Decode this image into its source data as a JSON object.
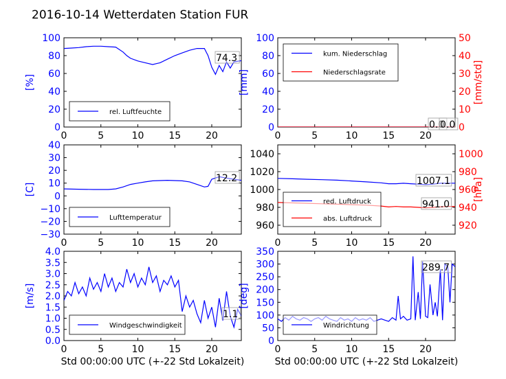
{
  "title": "2016-10-14 Wetterdaten Station FUR",
  "colors": {
    "blue": "#0000ff",
    "red": "#ff0000",
    "black": "#000000",
    "light_blue": "#7070ff"
  },
  "chart_data": [
    {
      "id": "humidity",
      "type": "line",
      "ylabel": "[%]",
      "xlabel": "",
      "xlim": [
        0,
        24
      ],
      "ylim": [
        0,
        100
      ],
      "xticks": [
        "0",
        "5",
        "10",
        "15",
        "20"
      ],
      "yticks": [
        "0",
        "20",
        "40",
        "60",
        "80",
        "100"
      ],
      "legend": [
        "rel. Luftfeuchte"
      ],
      "annotation": "74.3",
      "series": [
        {
          "name": "rel. Luftfeuchte",
          "color": "#0000ff",
          "x": [
            0,
            1,
            2,
            3,
            4,
            5,
            6,
            7,
            8,
            8.5,
            9,
            10,
            11,
            12,
            12.5,
            13,
            14,
            15,
            16,
            17,
            18,
            19,
            19.5,
            20,
            20.5,
            21,
            21.5,
            22,
            22.5,
            23,
            24
          ],
          "y": [
            88,
            88.5,
            89,
            90,
            90.5,
            90.5,
            90,
            89.5,
            84,
            80,
            77,
            74,
            72,
            70,
            71,
            72,
            76,
            80,
            83,
            86,
            88,
            88,
            80,
            67,
            59,
            69,
            62,
            73,
            66,
            73,
            74.3
          ]
        }
      ]
    },
    {
      "id": "precipitation",
      "type": "line",
      "ylabel": "[mm]",
      "y2label": "[mm/std]",
      "xlabel": "",
      "xlim": [
        0,
        24
      ],
      "ylim": [
        0,
        100
      ],
      "y2lim": [
        0,
        50
      ],
      "xticks": [
        "0",
        "5",
        "10",
        "15",
        "20"
      ],
      "yticks": [
        "0",
        "20",
        "40",
        "60",
        "80",
        "100"
      ],
      "y2ticks": [
        "0",
        "10",
        "20",
        "30",
        "40",
        "50"
      ],
      "legend": [
        "kum. Niederschlag",
        "Niederschlagsrate"
      ],
      "annotations": [
        "0.0",
        "0.0"
      ],
      "series": [
        {
          "name": "kum. Niederschlag",
          "color": "#0000ff",
          "x": [
            0,
            24
          ],
          "y": [
            0,
            0
          ]
        },
        {
          "name": "Niederschlagsrate",
          "color": "#ff0000",
          "x": [
            0,
            24
          ],
          "y": [
            0,
            0
          ]
        }
      ]
    },
    {
      "id": "temperature",
      "type": "line",
      "ylabel": "[C]",
      "xlabel": "",
      "xlim": [
        0,
        24
      ],
      "ylim": [
        -30,
        40
      ],
      "xticks": [
        "0",
        "5",
        "10",
        "15",
        "20"
      ],
      "yticks": [
        "−30",
        "−20",
        "−10",
        "0",
        "10",
        "20",
        "30",
        "40"
      ],
      "legend": [
        "Lufttemperatur"
      ],
      "annotation": "12.2",
      "series": [
        {
          "name": "Lufttemperatur",
          "color": "#0000ff",
          "x": [
            0,
            2,
            4,
            6,
            7,
            8,
            9,
            10,
            11,
            12,
            13,
            14,
            15,
            16,
            17,
            18,
            19,
            19.5,
            20,
            21,
            22,
            23,
            24
          ],
          "y": [
            5.5,
            5.2,
            5,
            5,
            5.5,
            7,
            9,
            10,
            11,
            11.8,
            12,
            12.2,
            12,
            11.8,
            11,
            9,
            7,
            7.5,
            13,
            15,
            14,
            13,
            12.2
          ]
        }
      ]
    },
    {
      "id": "pressure",
      "type": "line",
      "ylabel": "",
      "y2label": "[hPa]",
      "xlabel": "",
      "xlim": [
        0,
        24
      ],
      "ylim": [
        950,
        1050
      ],
      "y2lim": [
        910,
        1010
      ],
      "xticks": [
        "0",
        "5",
        "10",
        "15",
        "20"
      ],
      "yticks": [
        "960",
        "980",
        "1000",
        "1020",
        "1040"
      ],
      "y2ticks": [
        "920",
        "940",
        "960",
        "980",
        "1000"
      ],
      "legend": [
        "red. Luftdruck",
        "abs. Luftdruck"
      ],
      "annotations": [
        "1007.1",
        "941.0"
      ],
      "series": [
        {
          "name": "red. Luftdruck",
          "color": "#0000ff",
          "x": [
            0,
            2,
            4,
            6,
            8,
            10,
            12,
            14,
            15,
            16,
            17,
            18,
            19,
            20,
            21,
            22,
            23,
            24
          ],
          "y": [
            1012.5,
            1012,
            1011.5,
            1011,
            1010.5,
            1009.5,
            1008.5,
            1007.5,
            1006.5,
            1006.5,
            1007,
            1006.5,
            1006,
            1005.5,
            1006,
            1007,
            1007,
            1007.1
          ]
        },
        {
          "name": "abs. Luftdruck",
          "color": "#ff0000",
          "x": [
            0,
            2,
            4,
            6,
            8,
            10,
            12,
            14,
            15,
            16,
            17,
            18,
            19,
            20,
            21,
            22,
            23,
            24
          ],
          "y": [
            945.5,
            945,
            944.5,
            944,
            943.5,
            943,
            942.5,
            941.5,
            940.5,
            941,
            940.5,
            940.5,
            940,
            939.5,
            940,
            940.5,
            941,
            941.0
          ]
        }
      ]
    },
    {
      "id": "windspeed",
      "type": "line",
      "ylabel": "[m/s]",
      "xlabel": "Std 00:00:00 UTC (+-22 Std Lokalzeit)",
      "xlim": [
        0,
        24
      ],
      "ylim": [
        0,
        4
      ],
      "xticks": [
        "0",
        "5",
        "10",
        "15",
        "20"
      ],
      "yticks": [
        "0.0",
        "0.5",
        "1.0",
        "1.5",
        "2.0",
        "2.5",
        "3.0",
        "3.5",
        "4.0"
      ],
      "legend": [
        "Windgeschwindigkeit"
      ],
      "annotation": "1.1",
      "series": [
        {
          "name": "Windgeschwindigkeit",
          "color": "#0000ff",
          "x": [
            0,
            0.5,
            1,
            1.5,
            2,
            2.5,
            3,
            3.5,
            4,
            4.5,
            5,
            5.5,
            6,
            6.5,
            7,
            7.5,
            8,
            8.5,
            9,
            9.5,
            10,
            10.5,
            11,
            11.5,
            12,
            12.5,
            13,
            13.5,
            14,
            14.5,
            15,
            15.5,
            16,
            16.5,
            17,
            17.5,
            18,
            18.5,
            19,
            19.5,
            20,
            20.5,
            21,
            21.5,
            22,
            22.5,
            23,
            23.5,
            24
          ],
          "y": [
            1.8,
            2.2,
            2.0,
            2.6,
            2.1,
            2.4,
            2.0,
            2.8,
            2.3,
            2.6,
            2.2,
            3.0,
            2.4,
            2.8,
            2.2,
            2.6,
            2.4,
            3.2,
            2.6,
            3.0,
            2.4,
            2.8,
            2.5,
            3.3,
            2.6,
            2.9,
            2.2,
            2.7,
            2.5,
            2.9,
            2.4,
            2.7,
            1.3,
            2.0,
            1.5,
            1.8,
            1.2,
            0.8,
            1.8,
            1.0,
            1.5,
            0.6,
            1.9,
            0.9,
            2.2,
            1.1,
            0.6,
            1.4,
            1.1
          ]
        }
      ]
    },
    {
      "id": "winddirection",
      "type": "line",
      "ylabel": "[deg]",
      "xlabel": "Std 00:00:00 UTC (+-22 Std Lokalzeit)",
      "xlim": [
        0,
        24
      ],
      "ylim": [
        0,
        350
      ],
      "xticks": [
        "0",
        "5",
        "10",
        "15",
        "20"
      ],
      "yticks": [
        "0",
        "50",
        "100",
        "150",
        "200",
        "250",
        "300",
        "350"
      ],
      "legend": [
        "Windrichtung"
      ],
      "annotation": "289.7",
      "series": [
        {
          "name": "Windrichtung",
          "color": "#0000ff",
          "x": [
            0,
            0.5,
            1,
            1.5,
            2,
            2.5,
            3,
            3.5,
            4,
            4.5,
            5,
            5.5,
            6,
            6.5,
            7,
            7.5,
            8,
            8.5,
            9,
            9.5,
            10,
            10.5,
            11,
            11.5,
            12,
            12.5,
            13,
            13.5,
            14,
            14.5,
            15,
            15.5,
            16,
            16.3,
            16.6,
            17,
            17.5,
            18,
            18.3,
            18.6,
            19,
            19.3,
            19.6,
            20,
            20.3,
            20.6,
            21,
            21.3,
            21.6,
            22,
            22.3,
            22.6,
            23,
            23.3,
            23.6,
            24
          ],
          "y": [
            85,
            75,
            90,
            80,
            95,
            85,
            80,
            90,
            85,
            75,
            85,
            90,
            80,
            95,
            85,
            80,
            75,
            90,
            80,
            85,
            75,
            90,
            80,
            85,
            80,
            90,
            75,
            80,
            85,
            80,
            75,
            90,
            80,
            175,
            85,
            95,
            80,
            85,
            330,
            80,
            190,
            85,
            310,
            95,
            90,
            220,
            100,
            150,
            95,
            280,
            80,
            300,
            290,
            150,
            300,
            289.7
          ]
        }
      ]
    }
  ]
}
